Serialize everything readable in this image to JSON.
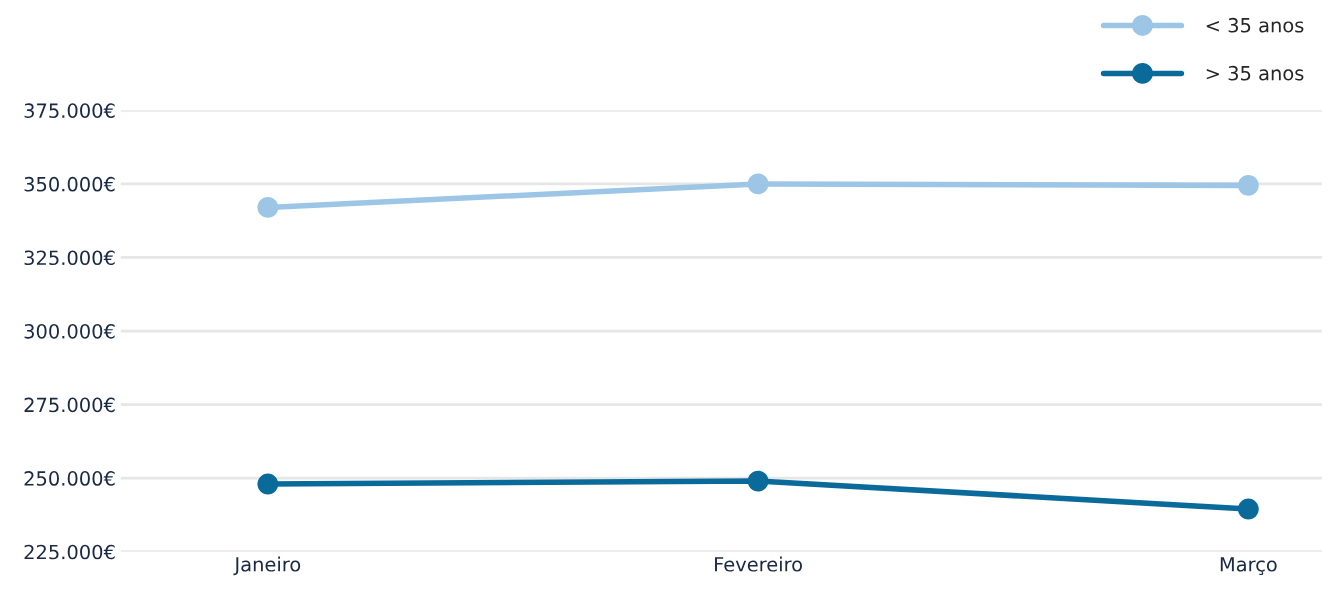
{
  "chart_data": {
    "type": "line",
    "categories": [
      "Janeiro",
      "Fevereiro",
      "Março"
    ],
    "series": [
      {
        "name": "< 35 anos",
        "color": "#9dc6e6",
        "values": [
          342000,
          350000,
          349500
        ]
      },
      {
        "name": "> 35 anos",
        "color": "#0a6a9a",
        "values": [
          248000,
          249000,
          239500
        ]
      }
    ],
    "ylim": [
      225000,
      375000
    ],
    "yticks": [
      {
        "value": 225000,
        "label": "225.000€"
      },
      {
        "value": 250000,
        "label": "250.000€"
      },
      {
        "value": 275000,
        "label": "275.000€"
      },
      {
        "value": 300000,
        "label": "300.000€"
      },
      {
        "value": 325000,
        "label": "325.000€"
      },
      {
        "value": 350000,
        "label": "350.000€"
      },
      {
        "value": 375000,
        "label": "375.000€"
      }
    ],
    "grid": "y",
    "legend": "top right",
    "marker": "circle",
    "line_style": "solid"
  }
}
